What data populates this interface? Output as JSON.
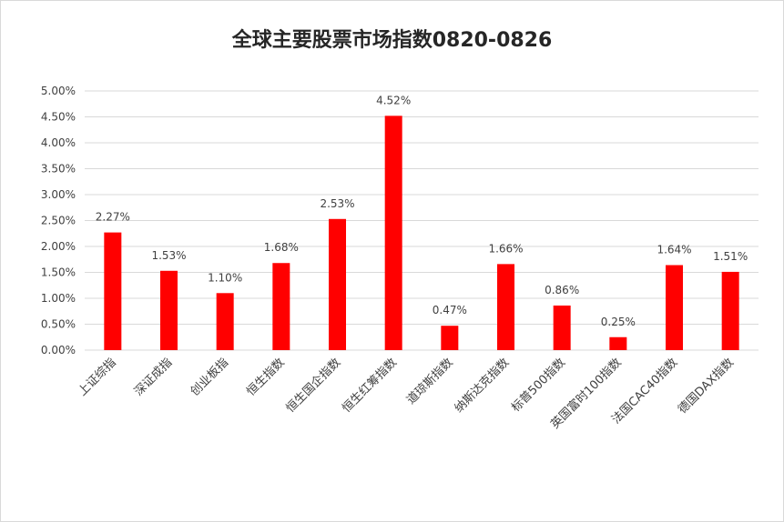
{
  "chart_data": {
    "type": "bar",
    "title": "全球主要股票市场指数0820-0826",
    "categories": [
      "上证综指",
      "深证成指",
      "创业板指",
      "恒生指数",
      "恒生国企指数",
      "恒生红筹指数",
      "道琼斯指数",
      "纳斯达克指数",
      "标普500指数",
      "英国富时100指数",
      "法国CAC40指数",
      "德国DAX指数"
    ],
    "values": [
      2.27,
      1.53,
      1.1,
      1.68,
      2.53,
      4.52,
      0.47,
      1.66,
      0.86,
      0.25,
      1.64,
      1.51
    ],
    "value_labels": [
      "2.27%",
      "1.53%",
      "1.10%",
      "1.68%",
      "2.53%",
      "4.52%",
      "0.47%",
      "1.66%",
      "0.86%",
      "0.25%",
      "1.64%",
      "1.51%"
    ],
    "yticks": [
      0,
      0.5,
      1,
      1.5,
      2,
      2.5,
      3,
      3.5,
      4,
      4.5,
      5
    ],
    "ytick_labels": [
      "0.00%",
      "0.50%",
      "1.00%",
      "1.50%",
      "2.00%",
      "2.50%",
      "3.00%",
      "3.50%",
      "4.00%",
      "4.50%",
      "5.00%"
    ],
    "ylim": [
      0,
      5
    ],
    "xlabel": "",
    "ylabel": "",
    "grid": true,
    "legend": "none",
    "bar_color": "#ff0000",
    "grid_color": "#d9d9d9"
  }
}
